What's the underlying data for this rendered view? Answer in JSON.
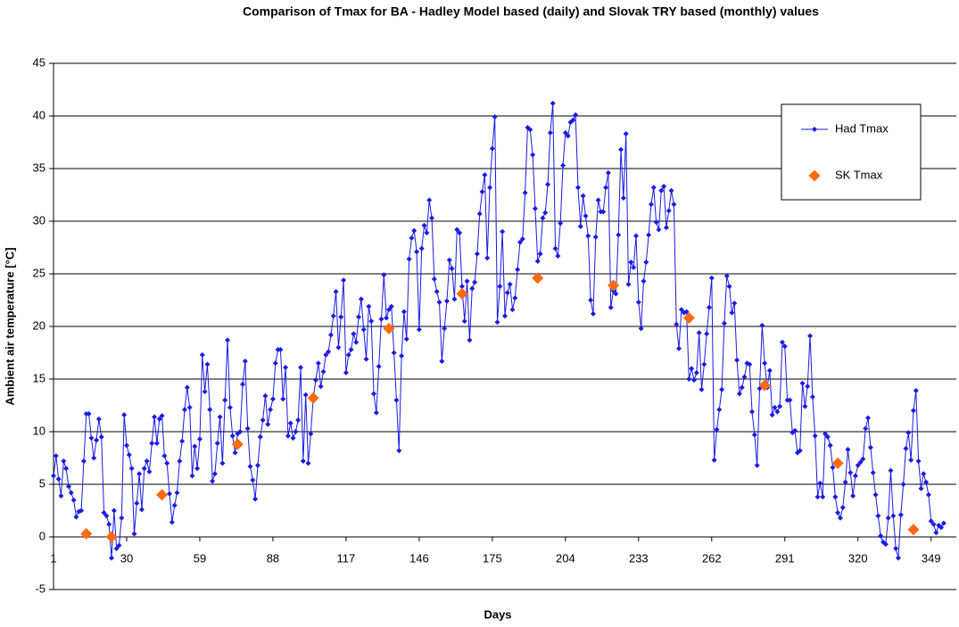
{
  "chart_data": {
    "type": "line",
    "title": "Comparison of Tmax for BA - Hadley Model based (daily) and Slovak TRY based (monthly) values",
    "x_label": "Days",
    "y_label": "Ambient air temperature [°C]",
    "xlim": [
      1,
      359
    ],
    "xticks": [
      1,
      30,
      59,
      88,
      117,
      146,
      175,
      204,
      233,
      262,
      291,
      320,
      349
    ],
    "ylim": [
      -5,
      45
    ],
    "yticks": [
      -5,
      0,
      5,
      10,
      15,
      20,
      25,
      30,
      35,
      40,
      45
    ],
    "grid": true,
    "legend": "upper right",
    "series": [
      {
        "name": "Had Tmax",
        "color": "#1a1ae6",
        "marker": "diamond",
        "x": [
          1,
          2,
          3,
          4,
          5,
          6,
          7,
          8,
          9,
          10,
          11,
          12,
          13,
          14,
          15,
          16,
          17,
          18,
          19,
          20,
          21,
          22,
          23,
          24,
          25,
          26,
          27,
          28,
          29,
          30,
          31,
          32,
          33,
          34,
          35,
          36,
          37,
          38,
          39,
          40,
          41,
          42,
          43,
          44,
          45,
          46,
          47,
          48,
          49,
          50,
          51,
          52,
          53,
          54,
          55,
          56,
          57,
          58,
          59,
          60,
          61,
          62,
          63,
          64,
          65,
          66,
          67,
          68,
          69,
          70,
          71,
          72,
          73,
          74,
          75,
          76,
          77,
          78,
          79,
          80,
          81,
          82,
          83,
          84,
          85,
          86,
          87,
          88,
          89,
          90,
          91,
          92,
          93,
          94,
          95,
          96,
          97,
          98,
          99,
          100,
          101,
          102,
          103,
          104,
          105,
          106,
          107,
          108,
          109,
          110,
          111,
          112,
          113,
          114,
          115,
          116,
          117,
          118,
          119,
          120,
          121,
          122,
          123,
          124,
          125,
          126,
          127,
          128,
          129,
          130,
          131,
          132,
          133,
          134,
          135,
          136,
          137,
          138,
          139,
          140,
          141,
          142,
          143,
          144,
          145,
          146,
          147,
          148,
          149,
          150,
          151,
          152,
          153,
          154,
          155,
          156,
          157,
          158,
          159,
          160,
          161,
          162,
          163,
          164,
          165,
          166,
          167,
          168,
          169,
          170,
          171,
          172,
          173,
          174,
          175,
          176,
          177,
          178,
          179,
          180,
          181,
          182,
          183,
          184,
          185,
          186,
          187,
          188,
          189,
          190,
          191,
          192,
          193,
          194,
          195,
          196,
          197,
          198,
          199,
          200,
          201,
          202,
          203,
          204,
          205,
          206,
          207,
          208,
          209,
          210,
          211,
          212,
          213,
          214,
          215,
          216,
          217,
          218,
          219,
          220,
          221,
          222,
          223,
          224,
          225,
          226,
          227,
          228,
          229,
          230,
          231,
          232,
          233,
          234,
          235,
          236,
          237,
          238,
          239,
          240,
          241,
          242,
          243,
          244,
          245,
          246,
          247,
          248,
          249,
          250,
          251,
          252,
          253,
          254,
          255,
          256,
          257,
          258,
          259,
          260,
          261,
          262,
          263,
          264,
          265,
          266,
          267,
          268,
          269,
          270,
          271,
          272,
          273,
          274,
          275,
          276,
          277,
          278,
          279,
          280,
          281,
          282,
          283,
          284,
          285,
          286,
          287,
          288,
          289,
          290,
          291,
          292,
          293,
          294,
          295,
          296,
          297,
          298,
          299,
          300,
          301,
          302,
          303,
          304,
          305,
          306,
          307,
          308,
          309,
          310,
          311,
          312,
          313,
          314,
          315,
          316,
          317,
          318,
          319,
          320,
          321,
          322,
          323,
          324,
          325,
          326,
          327,
          328,
          329,
          330,
          331,
          332,
          333,
          334,
          335,
          336,
          337,
          338,
          339,
          340,
          341,
          342,
          343,
          344,
          345,
          346,
          347,
          348,
          349,
          350,
          351,
          352,
          353,
          354
        ],
        "values": [
          5.8,
          7.7,
          5.5,
          3.9,
          7.2,
          6.5,
          4.8,
          4.2,
          3.5,
          1.9,
          2.4,
          2.5,
          7.2,
          11.7,
          11.7,
          9.4,
          7.5,
          9.2,
          11.2,
          9.5,
          2.3,
          2.0,
          1.2,
          -2.0,
          2.5,
          -1.1,
          -0.8,
          1.8,
          11.6,
          8.7,
          7.8,
          6.5,
          0.3,
          3.2,
          6.0,
          2.6,
          6.5,
          7.2,
          6.2,
          8.9,
          11.4,
          8.9,
          11.2,
          11.5,
          7.7,
          7.0,
          4.1,
          1.4,
          3.0,
          4.2,
          7.2,
          9.1,
          12.1,
          14.2,
          12.3,
          5.8,
          8.6,
          6.5,
          9.3,
          17.3,
          13.8,
          16.4,
          12.1,
          5.3,
          6.0,
          8.9,
          11.4,
          7.0,
          13.0,
          18.7,
          12.3,
          9.6,
          8.0,
          9.8,
          10.0,
          14.5,
          16.7,
          10.3,
          6.7,
          5.4,
          3.6,
          6.8,
          9.5,
          11.1,
          13.4,
          10.7,
          12.1,
          13.1,
          16.5,
          17.8,
          17.8,
          13.1,
          16.1,
          9.6,
          10.8,
          9.4,
          10.0,
          11.1,
          16.1,
          7.2,
          13.5,
          7.0,
          9.8,
          13.2,
          14.9,
          16.5,
          14.3,
          15.7,
          17.3,
          17.6,
          19.2,
          21.0,
          23.3,
          18.0,
          20.9,
          24.4,
          15.6,
          17.3,
          17.8,
          19.3,
          18.5,
          20.9,
          22.6,
          19.7,
          16.9,
          21.9,
          20.5,
          13.6,
          11.8,
          16.2,
          20.7,
          24.9,
          20.8,
          21.6,
          21.9,
          17.5,
          13.0,
          8.2,
          17.2,
          21.4,
          18.8,
          26.4,
          28.4,
          29.1,
          27.1,
          19.7,
          27.4,
          29.6,
          28.9,
          32.0,
          30.3,
          24.5,
          23.3,
          22.3,
          16.7,
          19.8,
          22.4,
          26.3,
          25.5,
          22.6,
          29.2,
          28.9,
          23.8,
          20.5,
          24.3,
          18.7,
          23.6,
          24.2,
          26.9,
          30.7,
          32.8,
          34.4,
          26.5,
          33.2,
          36.9,
          39.9,
          20.4,
          23.8,
          29.0,
          21.0,
          23.2,
          24.0,
          21.6,
          22.7,
          25.4,
          28.0,
          28.3,
          32.7,
          38.9,
          38.7,
          36.3,
          31.2,
          26.2,
          26.9,
          30.3,
          30.8,
          33.5,
          38.4,
          41.2,
          27.4,
          26.7,
          29.8,
          35.3,
          38.4,
          38.1,
          39.4,
          39.6,
          40.1,
          33.2,
          29.5,
          32.4,
          30.5,
          28.6,
          22.5,
          21.2,
          28.5,
          32.0,
          30.9,
          30.9,
          33.2,
          34.6,
          21.8,
          23.4,
          23.1,
          28.7,
          36.8,
          32.2,
          38.3,
          24.0,
          26.1,
          25.6,
          28.6,
          22.3,
          19.8,
          24.3,
          26.1,
          28.7,
          31.6,
          33.2,
          29.9,
          29.2,
          32.9,
          33.3,
          29.4,
          31.0,
          32.9,
          31.6,
          20.2,
          17.9,
          21.6,
          21.3,
          21.4,
          15.0,
          16.0,
          14.9,
          15.6,
          19.4,
          14.0,
          16.4,
          19.3,
          21.8,
          24.6,
          7.3,
          10.2,
          12.1,
          14.0,
          20.3,
          24.8,
          23.8,
          21.3,
          22.2,
          16.8,
          13.6,
          14.2,
          15.2,
          16.5,
          16.4,
          11.9,
          9.7,
          6.8,
          14.1,
          20.1,
          16.5,
          14.2,
          15.8,
          11.6,
          12.3,
          11.9,
          12.4,
          18.5,
          18.1,
          13.0,
          13.0,
          9.9,
          10.1,
          8.0,
          8.2,
          14.6,
          12.4,
          14.3,
          19.1,
          13.3,
          9.6,
          3.8,
          5.1,
          3.8,
          9.8,
          9.5,
          8.7,
          6.6,
          3.8,
          2.3,
          1.8,
          2.8,
          5.2,
          8.3,
          6.1,
          3.9,
          5.8,
          6.8,
          7.1,
          7.4,
          10.3,
          11.3,
          8.5,
          6.1,
          4.0,
          2.0,
          0.1,
          -0.5,
          -0.7,
          1.8,
          6.3,
          2.0,
          -1.1,
          -2.0,
          2.1,
          5.0,
          8.4,
          9.9,
          7.3,
          12.0,
          13.9,
          7.2,
          4.6,
          6.0,
          5.2,
          4.0,
          1.5,
          1.2,
          0.4,
          1.1,
          0.9,
          1.3
        ]
      },
      {
        "name": "SK Tmax",
        "color": "#ff6a0d",
        "marker": "diamond",
        "x": [
          14,
          24,
          44,
          74,
          104,
          134,
          163,
          193,
          223,
          253,
          283,
          312,
          342
        ],
        "values": [
          0.3,
          0,
          4.0,
          8.8,
          13.2,
          19.8,
          23.1,
          24.6,
          23.9,
          20.8,
          14.4,
          7.0,
          0.7
        ]
      }
    ]
  }
}
